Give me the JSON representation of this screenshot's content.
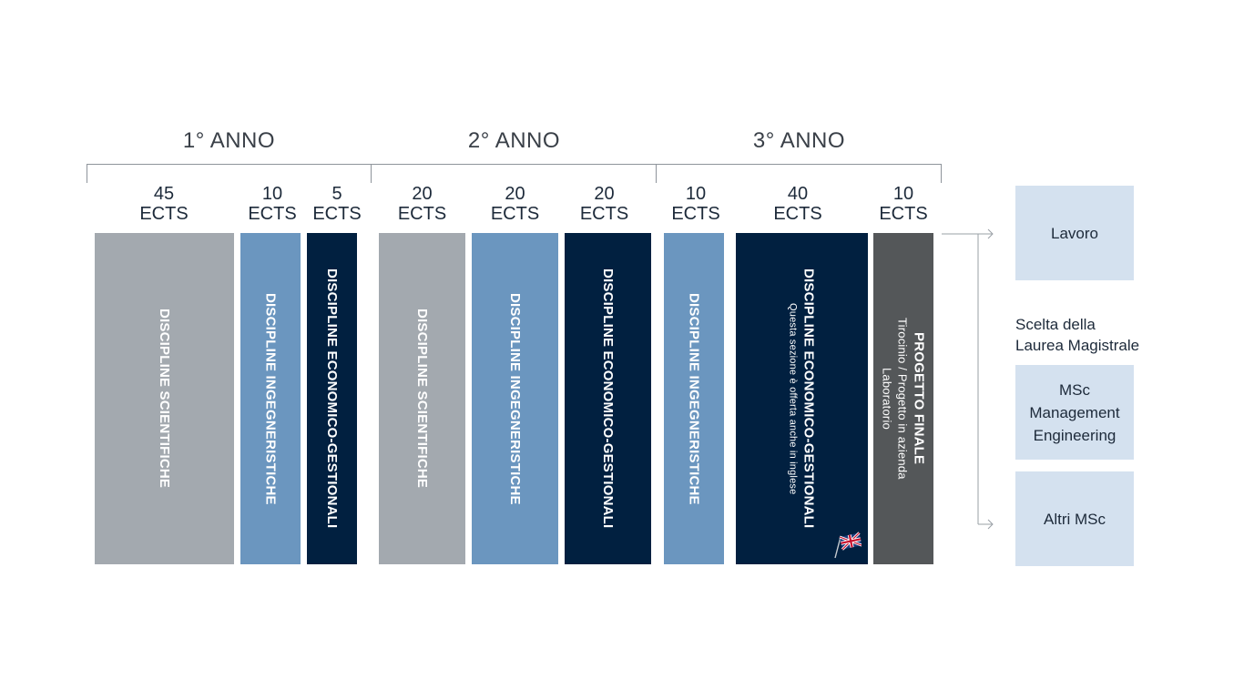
{
  "years": [
    {
      "title": "1° ANNO"
    },
    {
      "title": "2° ANNO"
    },
    {
      "title": "3° ANNO"
    }
  ],
  "columns": [
    {
      "credits": "45",
      "unit": "ECTS",
      "label": "DISCIPLINE SCIENTIFICHE",
      "category": "scientifiche",
      "color": "#a3a9af"
    },
    {
      "credits": "10",
      "unit": "ECTS",
      "label": "DISCIPLINE INGEGNERISTICHE",
      "category": "ingegneristiche",
      "color": "#6b96bf"
    },
    {
      "credits": "5",
      "unit": "ECTS",
      "label": "DISCIPLINE ECONOMICO-GESTIONALI",
      "category": "economico-gestionali",
      "color": "#012040"
    },
    {
      "credits": "20",
      "unit": "ECTS",
      "label": "DISCIPLINE SCIENTIFICHE",
      "category": "scientifiche",
      "color": "#a3a9af"
    },
    {
      "credits": "20",
      "unit": "ECTS",
      "label": "DISCIPLINE INGEGNERISTICHE",
      "category": "ingegneristiche",
      "color": "#6b96bf"
    },
    {
      "credits": "20",
      "unit": "ECTS",
      "label": "DISCIPLINE ECONOMICO-GESTIONALI",
      "category": "economico-gestionali",
      "color": "#012040"
    },
    {
      "credits": "10",
      "unit": "ECTS",
      "label": "DISCIPLINE INGEGNERISTICHE",
      "category": "ingegneristiche",
      "color": "#6b96bf"
    },
    {
      "credits": "40",
      "unit": "ECTS",
      "label": "DISCIPLINE ECONOMICO-GESTIONALI",
      "sublabel": "Questa sezione è offerta anche in inglese",
      "category": "economico-gestionali",
      "color": "#012040",
      "icon": "uk-flag-icon"
    },
    {
      "credits": "10",
      "unit": "ECTS",
      "label": "PROGETTO FINALE",
      "sublabel": "Tirocinio / Progetto in azienda",
      "sublabel2": "Laboratorio",
      "category": "progetto-finale",
      "color": "#545759"
    }
  ],
  "outcomes": {
    "lavoro": "Lavoro",
    "scelta_line1": "Scelta della",
    "scelta_line2": "Laurea Magistrale",
    "msc_line1": "MSc",
    "msc_line2": "Management",
    "msc_line3": "Engineering",
    "altri": "Altri MSc"
  },
  "colors": {
    "outcome_box": "#d4e1ef",
    "bracket": "#8e949b",
    "arrow": "#9aa0a6"
  }
}
